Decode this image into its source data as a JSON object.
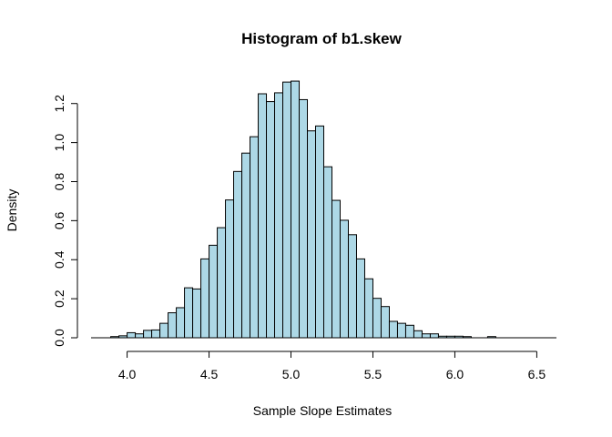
{
  "chart_data": {
    "type": "bar",
    "title": "Histogram of b1.skew",
    "xlabel": "Sample Slope Estimates",
    "ylabel": "Density",
    "xlim": [
      3.78,
      6.62
    ],
    "ylim": [
      0,
      1.32
    ],
    "x_ticks": [
      "4.0",
      "4.5",
      "5.0",
      "5.5",
      "6.0",
      "6.5"
    ],
    "y_ticks": [
      "0.0",
      "0.2",
      "0.4",
      "0.6",
      "0.8",
      "1.0",
      "1.2"
    ],
    "bin_width": 0.05,
    "bin_start": 3.9,
    "values": [
      0.006,
      0.01,
      0.026,
      0.02,
      0.038,
      0.04,
      0.074,
      0.128,
      0.154,
      0.256,
      0.25,
      0.404,
      0.474,
      0.564,
      0.706,
      0.852,
      0.946,
      1.03,
      1.25,
      1.21,
      1.255,
      1.31,
      1.315,
      1.22,
      1.06,
      1.085,
      0.876,
      0.704,
      0.602,
      0.528,
      0.404,
      0.302,
      0.202,
      0.16,
      0.084,
      0.074,
      0.064,
      0.036,
      0.02,
      0.02,
      0.008,
      0.008,
      0.008,
      0.006,
      0.0,
      0.0,
      0.006
    ],
    "bar_color": "#add8e6",
    "edge_color": "#000000",
    "grid": false,
    "legend": "none"
  }
}
